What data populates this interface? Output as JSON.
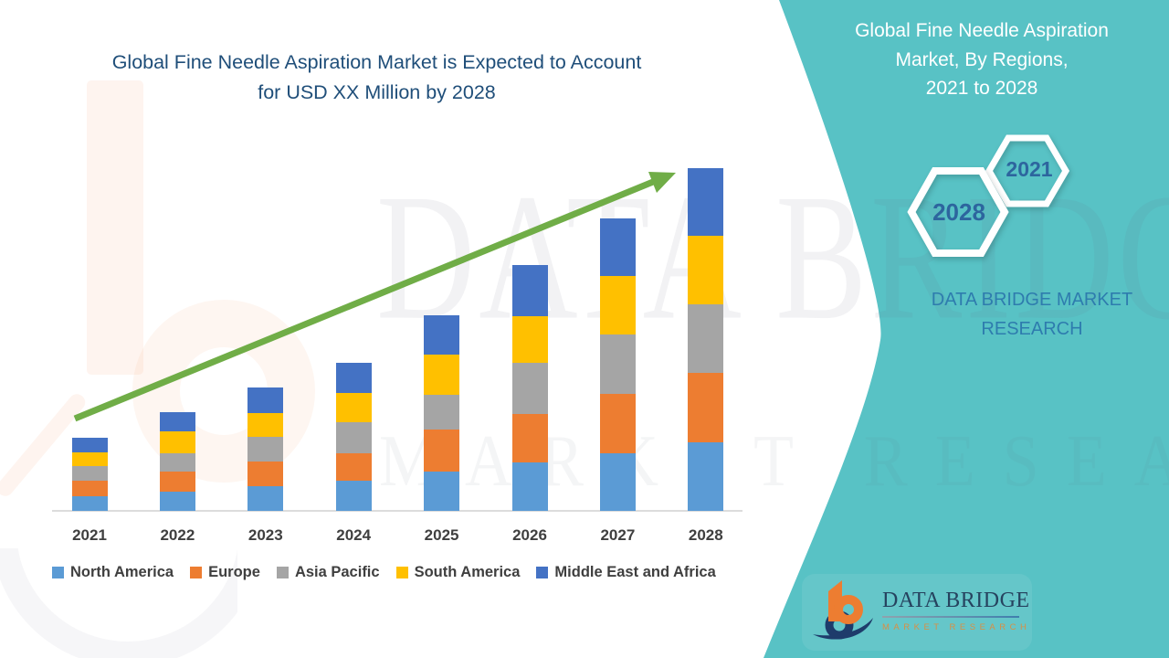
{
  "header": {
    "title_line1": "Global Fine Needle Aspiration Market is Expected to Account",
    "title_line2": "for USD XX Million by 2028"
  },
  "side_panel": {
    "accent_color": "#58c2c5",
    "title_line1": "Global Fine Needle Aspiration",
    "title_line2": "Market, By Regions,",
    "title_line3": "2021 to 2028",
    "hexagon_large_label": "2028",
    "hexagon_small_label": "2021",
    "brand_line1": "DATA BRIDGE MARKET",
    "brand_line2": "RESEARCH",
    "year_text_color": "#2d659e"
  },
  "watermark": {
    "line1": "DATA BRIDGE",
    "line2": "MARKET RESEARCH"
  },
  "footer_logo": {
    "name": "DATA BRIDGE",
    "subtitle": "MARKET  RESEARCH",
    "orange": "#ed7d31",
    "navy": "#1e3c6b"
  },
  "chart_data": {
    "type": "bar",
    "stacked": true,
    "title": "Global Fine Needle Aspiration Market is Expected to Account for USD XX Million by 2028",
    "categories": [
      "2021",
      "2022",
      "2023",
      "2024",
      "2025",
      "2026",
      "2027",
      "2028"
    ],
    "series": [
      {
        "name": "North America",
        "color": "#5b9bd5",
        "values": [
          16,
          21,
          27,
          33,
          43,
          53,
          63,
          75
        ]
      },
      {
        "name": "Europe",
        "color": "#ed7d31",
        "values": [
          17,
          22,
          27,
          30,
          46,
          53,
          65,
          76
        ]
      },
      {
        "name": "Asia Pacific",
        "color": "#a5a5a5",
        "values": [
          16,
          20,
          27,
          34,
          38,
          56,
          65,
          75
        ]
      },
      {
        "name": "South America",
        "color": "#ffc000",
        "values": [
          15,
          24,
          26,
          32,
          44,
          51,
          64,
          75
        ]
      },
      {
        "name": "Middle East and Africa",
        "color": "#4472c4",
        "values": [
          16,
          21,
          28,
          33,
          43,
          56,
          63,
          74
        ]
      }
    ],
    "stack_totals": [
      80,
      108,
      135,
      162,
      214,
      269,
      320,
      375
    ],
    "xlabel": "",
    "ylabel": "",
    "value_axis": "unlabeled (relative units, values shown as USD XX Million)",
    "grid": false,
    "legend_position": "bottom",
    "trend_arrow": {
      "present": true,
      "color": "#70ad47",
      "direction": "up-right"
    }
  }
}
